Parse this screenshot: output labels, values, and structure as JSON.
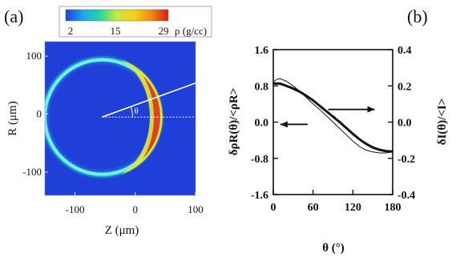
{
  "figure": {
    "panel_a_label": "(a)",
    "panel_b_label": "(b)"
  },
  "chart_data": [
    {
      "type": "heatmap",
      "panel": "(a)",
      "colorbar": {
        "ticks": [
          "2",
          "15",
          "29"
        ],
        "label": "ρ (g/cc)",
        "colors": [
          "#1f3fd8",
          "#1aa6f0",
          "#26d6a0",
          "#c8e83a",
          "#f6d019",
          "#f08a16",
          "#d81e16"
        ]
      },
      "xlabel": "Z (μm)",
      "ylabel": "R (μm)",
      "xticks": [
        -100,
        0,
        100
      ],
      "yticks": [
        100,
        0,
        -100
      ],
      "xlim": [
        -150,
        100
      ],
      "ylim": [
        -140,
        125
      ],
      "shell": {
        "center_z": -55,
        "center_r": -5,
        "radius": 95
      },
      "angle_label": "θ"
    },
    {
      "type": "line",
      "panel": "(b)",
      "xlabel": "θ (°)",
      "ylabel_left": "δρR(θ)/<ρR>",
      "ylabel_right": "δI(θ)/<I>",
      "xticks": [
        0,
        60,
        120,
        180
      ],
      "yticks_left": [
        1.6,
        0.8,
        0.0,
        -0.8,
        -1.6
      ],
      "yticks_right": [
        0.4,
        0.2,
        0.0,
        -0.2,
        -0.4
      ],
      "yticks_left_labels": [
        "1.6",
        "0.8",
        "0.0",
        "-0.8",
        "-1.6"
      ],
      "yticks_right_labels": [
        "0.4",
        "0.2",
        "0.0",
        "-0.2",
        "-0.4"
      ],
      "xlim": [
        0,
        180
      ],
      "ylim_left": [
        -1.6,
        1.6
      ],
      "ylim_right": [
        -0.4,
        0.4
      ],
      "series": [
        {
          "axis": "left",
          "stroke": "thick",
          "x": [
            0,
            10,
            20,
            30,
            40,
            50,
            60,
            70,
            80,
            90,
            100,
            110,
            120,
            130,
            140,
            150,
            160,
            170,
            180
          ],
          "y": [
            0.85,
            0.85,
            0.8,
            0.74,
            0.67,
            0.58,
            0.48,
            0.36,
            0.24,
            0.12,
            0.0,
            -0.13,
            -0.26,
            -0.38,
            -0.48,
            -0.56,
            -0.61,
            -0.64,
            -0.65
          ]
        },
        {
          "axis": "right",
          "stroke": "thin",
          "x": [
            0,
            5,
            10,
            20,
            30,
            40,
            50,
            60,
            70,
            80,
            90,
            100,
            110,
            120,
            130,
            140,
            150,
            160,
            170,
            180
          ],
          "y": [
            0.22,
            0.235,
            0.24,
            0.225,
            0.2,
            0.17,
            0.135,
            0.1,
            0.07,
            0.035,
            0.0,
            -0.035,
            -0.07,
            -0.105,
            -0.135,
            -0.155,
            -0.165,
            -0.17,
            -0.17,
            -0.165
          ]
        }
      ],
      "arrows": [
        {
          "points_to": "right-axis",
          "near_x": 90,
          "near_y_left": 0.28
        },
        {
          "points_to": "left-axis",
          "near_x": 30,
          "near_y_left": -0.05
        }
      ]
    }
  ]
}
